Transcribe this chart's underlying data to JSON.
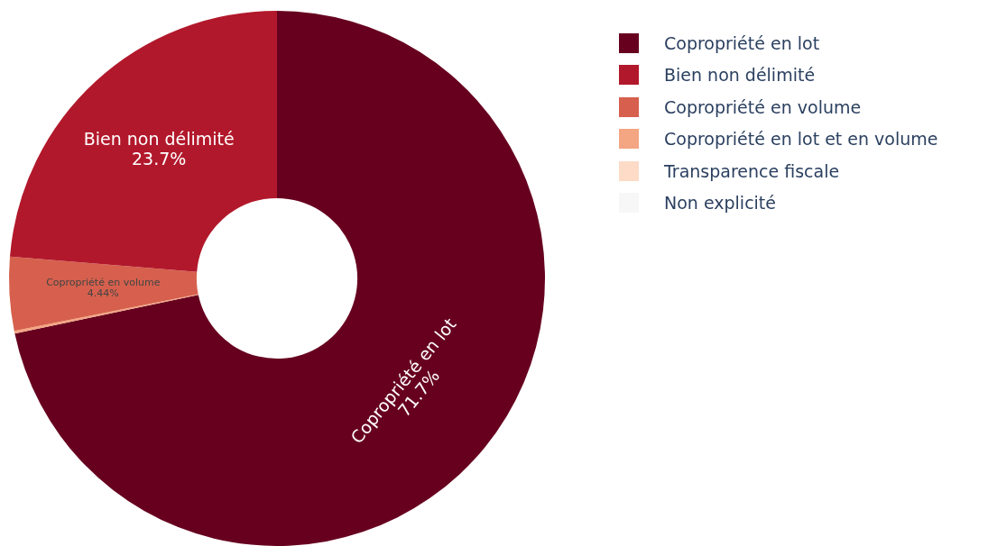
{
  "chart_data": {
    "type": "donut",
    "categories": [
      "Copropriété en lot",
      "Bien non délimité",
      "Copropriété en volume",
      "Copropriété en lot et en volume",
      "Transparence fiscale",
      "Non explicité"
    ],
    "values": [
      71.7,
      23.7,
      4.44,
      0.16,
      0,
      0
    ],
    "colors": [
      "#67001f",
      "#b2182b",
      "#d6604d",
      "#f4a582",
      "#fddbc7",
      "#f7f7f7"
    ],
    "value_labels": [
      "71.7%",
      "23.7%",
      "4.44%",
      null,
      null,
      null
    ],
    "legend": "top right"
  }
}
